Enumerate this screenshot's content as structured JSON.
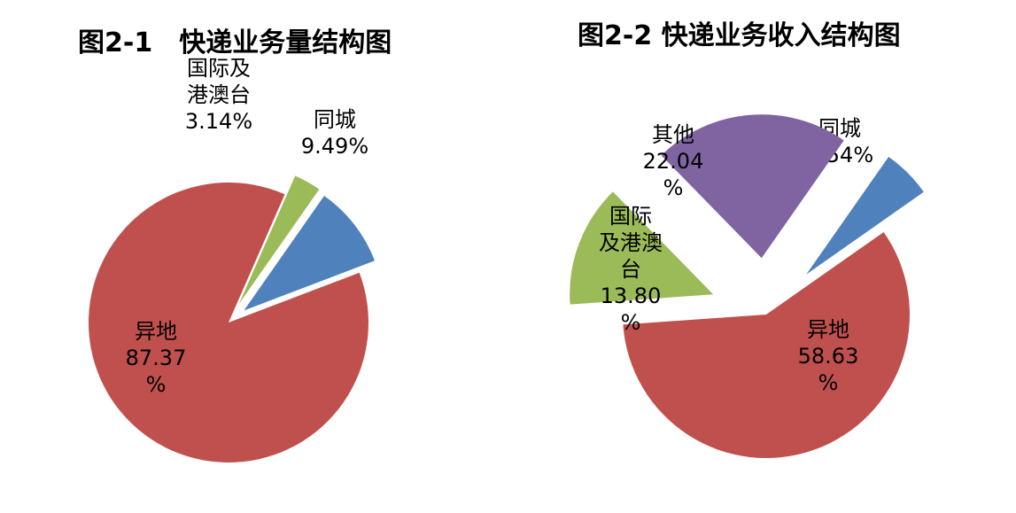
{
  "chart_data": [
    {
      "type": "pie",
      "title": "图2-1　快递业务量结构图",
      "slices": [
        {
          "label": "同城",
          "value": 9.49,
          "value_text": "9.49%",
          "label_lines": [
            "同城",
            "9.49%"
          ],
          "color": "#4F81BD"
        },
        {
          "label": "异地",
          "value": 87.37,
          "value_text": "87.37%",
          "label_lines": [
            "异地",
            "87.37",
            "%"
          ],
          "color": "#C0504D"
        },
        {
          "label": "国际及港澳台",
          "value": 3.14,
          "value_text": "3.14%",
          "label_lines": [
            "国际及",
            "港澳台",
            "3.14%"
          ],
          "color": "#9BBB59"
        }
      ]
    },
    {
      "type": "pie",
      "title": "图2-2 快递业务收入结构图",
      "slices": [
        {
          "label": "同城",
          "value": 5.54,
          "value_text": "5.54%",
          "label_lines": [
            "同城",
            "5.54%"
          ],
          "color": "#4F81BD"
        },
        {
          "label": "异地",
          "value": 58.63,
          "value_text": "58.63%",
          "label_lines": [
            "异地",
            "58.63",
            "%"
          ],
          "color": "#C0504D"
        },
        {
          "label": "国际及港澳台",
          "value": 13.8,
          "value_text": "13.80%",
          "label_lines": [
            "国际",
            "及港澳",
            "台",
            "13.80",
            "%"
          ],
          "color": "#9BBB59"
        },
        {
          "label": "其他",
          "value": 22.04,
          "value_text": "22.04%",
          "label_lines": [
            "其他",
            "22.04",
            "%"
          ],
          "color": "#8064A2"
        }
      ]
    }
  ]
}
